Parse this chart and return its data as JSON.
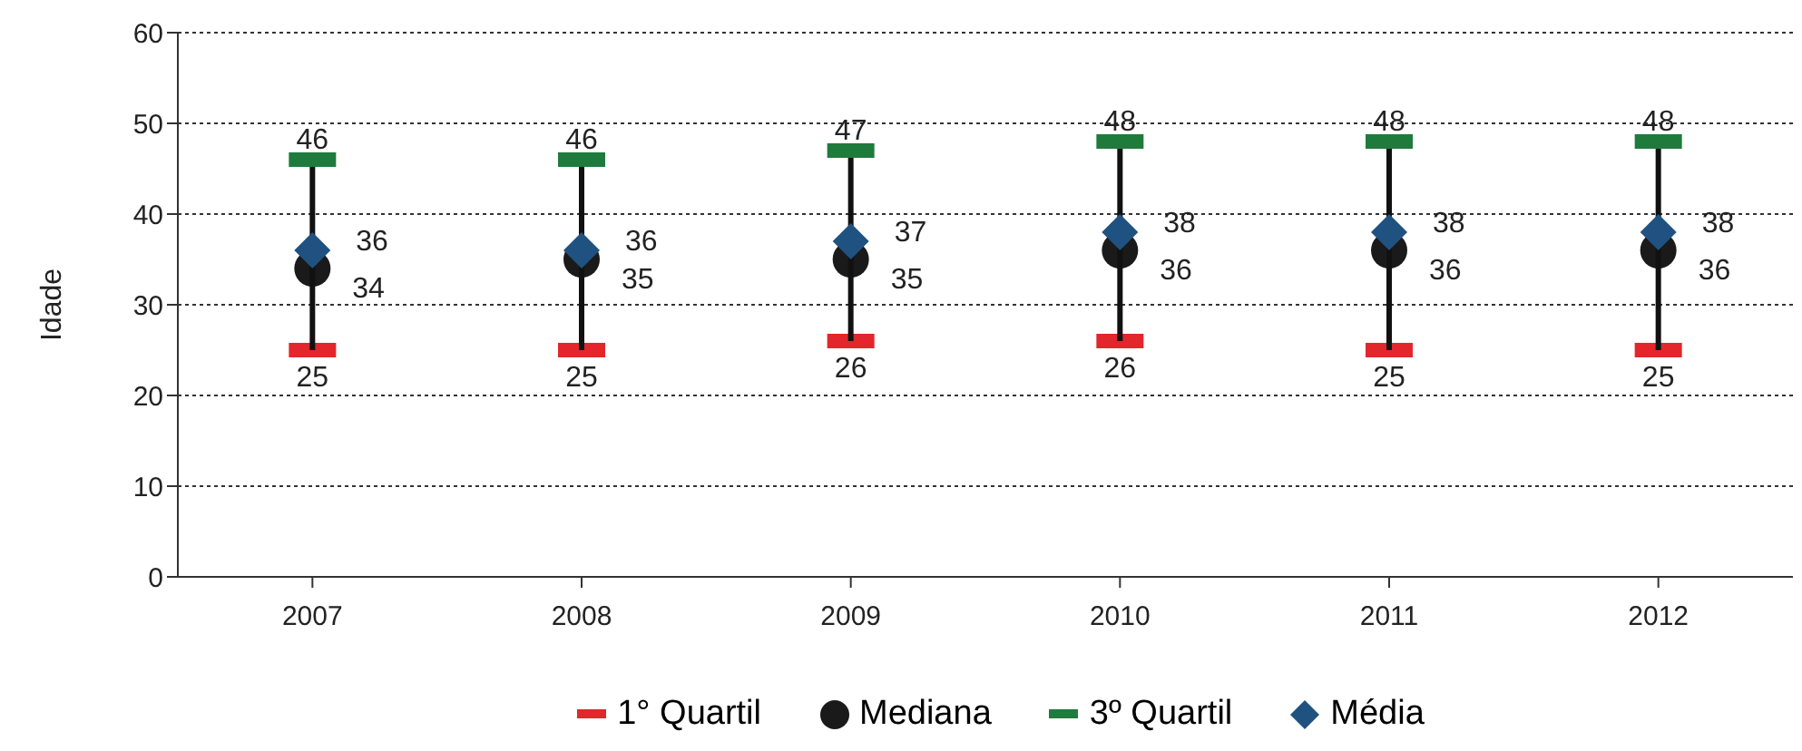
{
  "chart_data": {
    "type": "scatter",
    "ylabel": "Idade",
    "categories": [
      "2007",
      "2008",
      "2009",
      "2010",
      "2011",
      "2012"
    ],
    "series": [
      {
        "name": "1° Quartil",
        "color": "#e3262b",
        "values": [
          25,
          25,
          26,
          26,
          25,
          25
        ]
      },
      {
        "name": "Mediana",
        "color": "#1a1a1a",
        "marker": "circle",
        "values": [
          34,
          35,
          35,
          36,
          36,
          36
        ]
      },
      {
        "name": "3º Quartil",
        "color": "#1e7b3c",
        "values": [
          46,
          46,
          47,
          48,
          48,
          48
        ]
      },
      {
        "name": "Média",
        "color": "#1f5280",
        "marker": "diamond",
        "values": [
          36,
          36,
          37,
          38,
          38,
          38
        ]
      }
    ],
    "ylim": [
      0,
      60
    ],
    "yticks": [
      0,
      10,
      20,
      30,
      40,
      50,
      60
    ],
    "grid": "y",
    "legend": "bottom",
    "data_labels": true
  }
}
